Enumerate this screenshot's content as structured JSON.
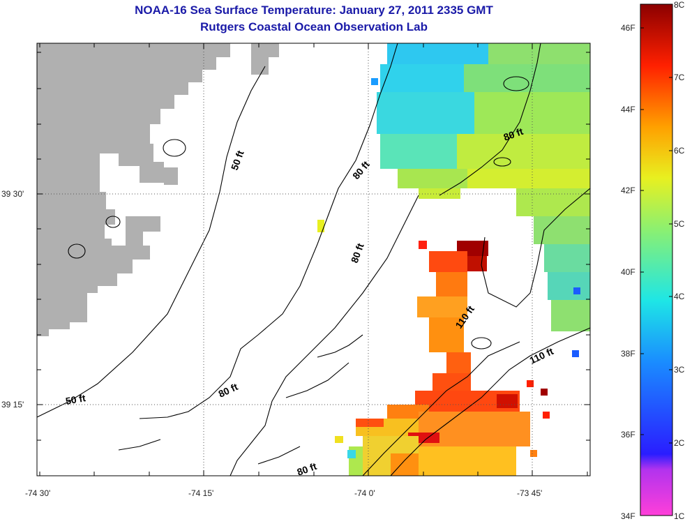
{
  "header": {
    "title": "NOAA-16 Sea Surface Temperature:  January 27, 2011 2335 GMT",
    "subtitle": "Rutgers Coastal Ocean Observation Lab"
  },
  "map": {
    "lat_labels": [
      "39 30'",
      "39 15'"
    ],
    "lon_labels": [
      "-74 30'",
      "-74 15'",
      "-74 0'",
      "-73 45'"
    ],
    "contour_labels": [
      "50 ft",
      "80 ft",
      "80 ft",
      "80 ft",
      "110 ft",
      "110 ft",
      "50 ft",
      "80 ft",
      "80 ft"
    ],
    "land_color": "#b0b0b0"
  },
  "colorbar": {
    "celsius": [
      "8C",
      "7C",
      "6C",
      "5C",
      "4C",
      "3C",
      "2C",
      "1C"
    ],
    "fahrenheit": [
      "46F",
      "44F",
      "42F",
      "40F",
      "38F",
      "36F",
      "34F"
    ]
  }
}
